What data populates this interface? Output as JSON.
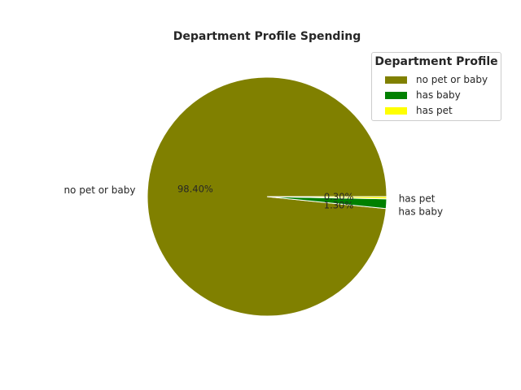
{
  "chart_data": {
    "type": "pie",
    "title": "Department Profile Spending",
    "categories": [
      "no pet or baby",
      "has baby",
      "has pet"
    ],
    "values": [
      98.4,
      1.3,
      0.3
    ],
    "percent_labels": [
      "98.40%",
      "1.30%",
      "0.30%"
    ],
    "colors": [
      "#808000",
      "#008000",
      "#ffff00"
    ],
    "legend": {
      "title": "Department Profile",
      "placement": "top-right",
      "entries": [
        "no pet or baby",
        "has baby",
        "has pet"
      ]
    }
  }
}
